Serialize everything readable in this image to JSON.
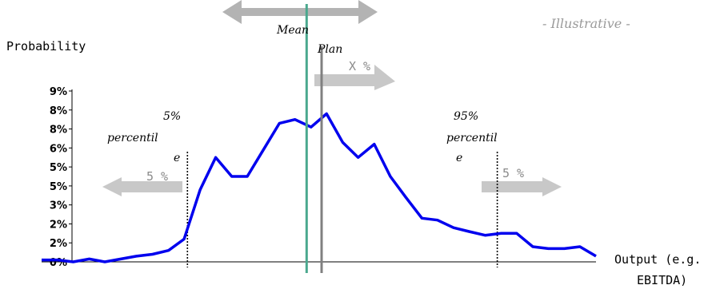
{
  "chart_data": {
    "type": "line",
    "ylabel": "Probability",
    "xlabel_line1": "Output (e.g.",
    "xlabel_line2": "EBITDA)",
    "note": "- Illustrative -",
    "y_ticks": [
      "0%",
      "2%",
      "2%",
      "3%",
      "5%",
      "5%",
      "6%",
      "8%",
      "8%",
      "9%"
    ],
    "ylim": [
      0,
      9
    ],
    "xlim": [
      0,
      100
    ],
    "grid": false,
    "color": "#0000ee",
    "x": [
      0,
      2.9,
      5.7,
      8.6,
      11.4,
      14.3,
      17.1,
      20,
      22.9,
      25.7,
      28.6,
      31.4,
      34.3,
      37.1,
      40,
      42.9,
      45.7,
      48.6,
      51.4,
      54.3,
      57.1,
      60,
      62.9,
      65.7,
      68.6,
      71.4,
      74.3,
      77.1,
      80,
      82.9,
      85.7,
      88.6,
      91.4,
      94.3,
      97.1,
      100
    ],
    "y": [
      0.1,
      0.1,
      0.0,
      0.15,
      0.0,
      0.15,
      0.3,
      0.4,
      0.6,
      1.2,
      3.8,
      5.5,
      4.5,
      4.5,
      5.9,
      7.3,
      7.5,
      7.1,
      7.8,
      6.3,
      5.5,
      6.2,
      4.5,
      3.4,
      2.3,
      2.2,
      1.8,
      1.6,
      1.4,
      1.5,
      1.5,
      0.8,
      0.7,
      0.7,
      0.8,
      0.3
    ],
    "mean": {
      "label": "Mean",
      "x": 47.8,
      "color": "#4aa88e"
    },
    "plan": {
      "label": "Plan",
      "x": 50.5,
      "color": "#808080",
      "delta_label": "X %"
    },
    "p5": {
      "label_line1": "5%",
      "label_line2": "percentil",
      "label_line3": "e",
      "x": 26.3,
      "tail_label": "5 %"
    },
    "p95": {
      "label_line1": "95%",
      "label_line2": "percentil",
      "label_line3": "e",
      "x": 82.2,
      "tail_label": "5 %"
    }
  }
}
